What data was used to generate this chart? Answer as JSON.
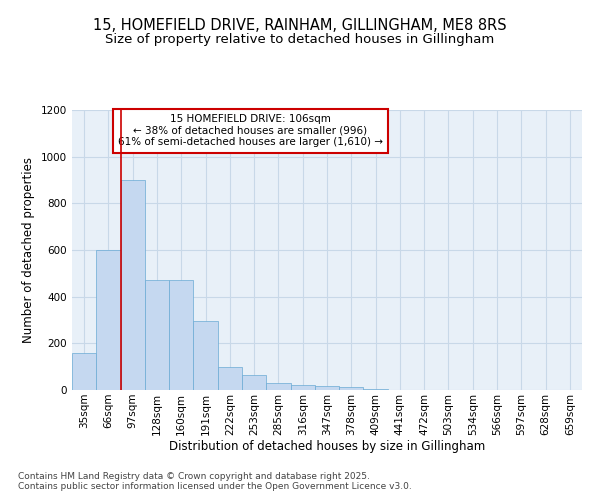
{
  "title_line1": "15, HOMEFIELD DRIVE, RAINHAM, GILLINGHAM, ME8 8RS",
  "title_line2": "Size of property relative to detached houses in Gillingham",
  "xlabel": "Distribution of detached houses by size in Gillingham",
  "ylabel": "Number of detached properties",
  "categories": [
    "35sqm",
    "66sqm",
    "97sqm",
    "128sqm",
    "160sqm",
    "191sqm",
    "222sqm",
    "253sqm",
    "285sqm",
    "316sqm",
    "347sqm",
    "378sqm",
    "409sqm",
    "441sqm",
    "472sqm",
    "503sqm",
    "534sqm",
    "566sqm",
    "597sqm",
    "628sqm",
    "659sqm"
  ],
  "values": [
    160,
    600,
    900,
    470,
    470,
    295,
    100,
    65,
    28,
    22,
    18,
    12,
    5,
    0,
    0,
    0,
    0,
    0,
    0,
    0,
    0
  ],
  "bar_color": "#c5d8f0",
  "bar_edge_color": "#6aaad4",
  "grid_color": "#c8d8e8",
  "background_color": "#e8f0f8",
  "annotation_box_text": "15 HOMEFIELD DRIVE: 106sqm\n← 38% of detached houses are smaller (996)\n61% of semi-detached houses are larger (1,610) →",
  "annotation_box_color": "#ffffff",
  "annotation_box_edge_color": "#cc0000",
  "vline_color": "#cc0000",
  "ylim": [
    0,
    1200
  ],
  "yticks": [
    0,
    200,
    400,
    600,
    800,
    1000,
    1200
  ],
  "footer_line1": "Contains HM Land Registry data © Crown copyright and database right 2025.",
  "footer_line2": "Contains public sector information licensed under the Open Government Licence v3.0.",
  "title_fontsize": 10.5,
  "subtitle_fontsize": 9.5,
  "axis_label_fontsize": 8.5,
  "tick_fontsize": 7.5,
  "annotation_fontsize": 7.5,
  "footer_fontsize": 6.5
}
